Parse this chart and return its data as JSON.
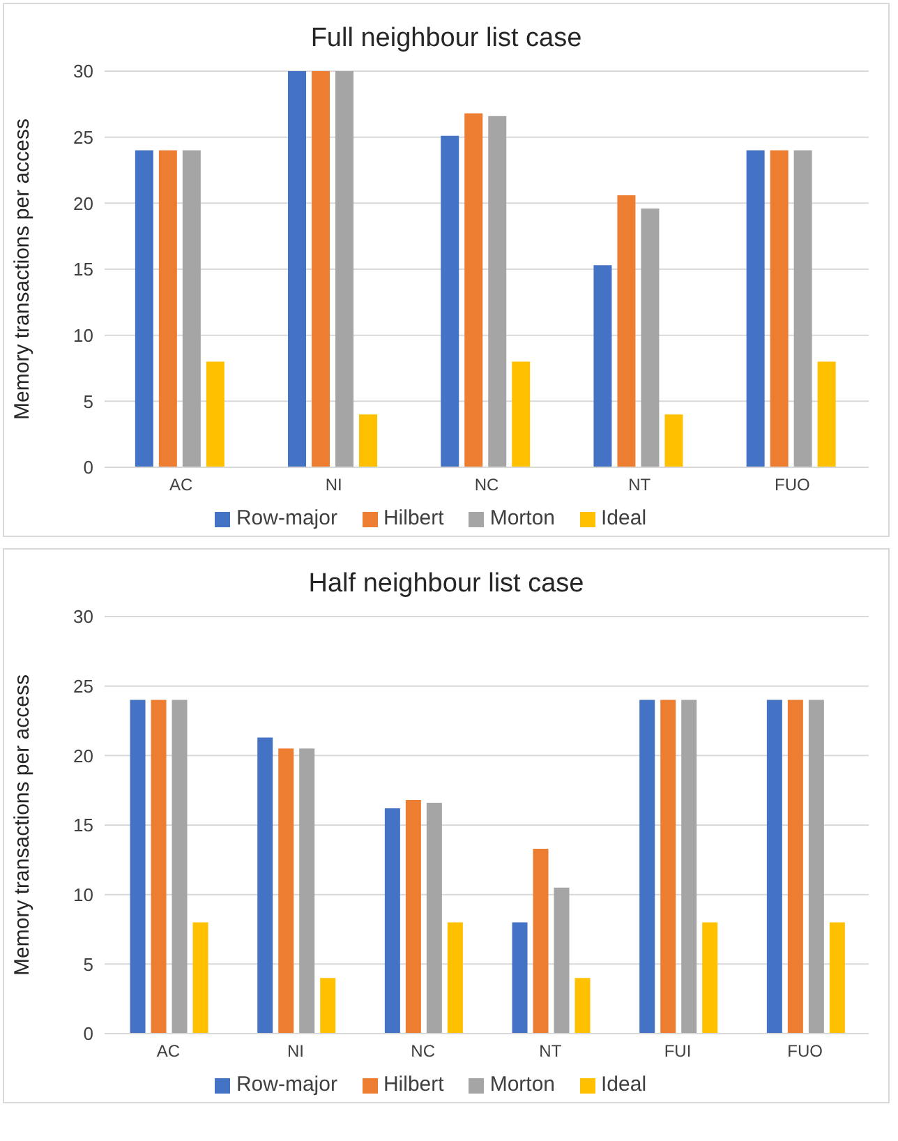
{
  "chart_data": [
    {
      "type": "bar",
      "title": "Full neighbour list case",
      "ylabel": "Memory transactions per access",
      "categories": [
        "AC",
        "NI",
        "NC",
        "NT",
        "FUO"
      ],
      "series": [
        {
          "name": "Row-major",
          "color": "#4472c4",
          "values": [
            24,
            30,
            25.1,
            15.3,
            24
          ]
        },
        {
          "name": "Hilbert",
          "color": "#ed7d31",
          "values": [
            24,
            30,
            26.8,
            20.6,
            24
          ]
        },
        {
          "name": "Morton",
          "color": "#a5a5a5",
          "values": [
            24,
            30,
            26.6,
            19.6,
            24
          ]
        },
        {
          "name": "Ideal",
          "color": "#ffc000",
          "values": [
            8,
            4,
            8,
            4,
            8
          ]
        }
      ],
      "ylim": [
        0,
        30
      ],
      "yticks": [
        0,
        5,
        10,
        15,
        20,
        25,
        30
      ],
      "grid": "y",
      "legend": "bottom"
    },
    {
      "type": "bar",
      "title": "Half neighbour list case",
      "ylabel": "Memory transactions per access",
      "categories": [
        "AC",
        "NI",
        "NC",
        "NT",
        "FUI",
        "FUO"
      ],
      "series": [
        {
          "name": "Row-major",
          "color": "#4472c4",
          "values": [
            24,
            21.3,
            16.2,
            8,
            24,
            24
          ]
        },
        {
          "name": "Hilbert",
          "color": "#ed7d31",
          "values": [
            24,
            20.5,
            16.8,
            13.3,
            24,
            24
          ]
        },
        {
          "name": "Morton",
          "color": "#a5a5a5",
          "values": [
            24,
            20.5,
            16.6,
            10.5,
            24,
            24
          ]
        },
        {
          "name": "Ideal",
          "color": "#ffc000",
          "values": [
            8,
            4,
            8,
            4,
            8,
            8
          ]
        }
      ],
      "ylim": [
        0,
        30
      ],
      "yticks": [
        0,
        5,
        10,
        15,
        20,
        25,
        30
      ],
      "grid": "y",
      "legend": "bottom"
    }
  ]
}
